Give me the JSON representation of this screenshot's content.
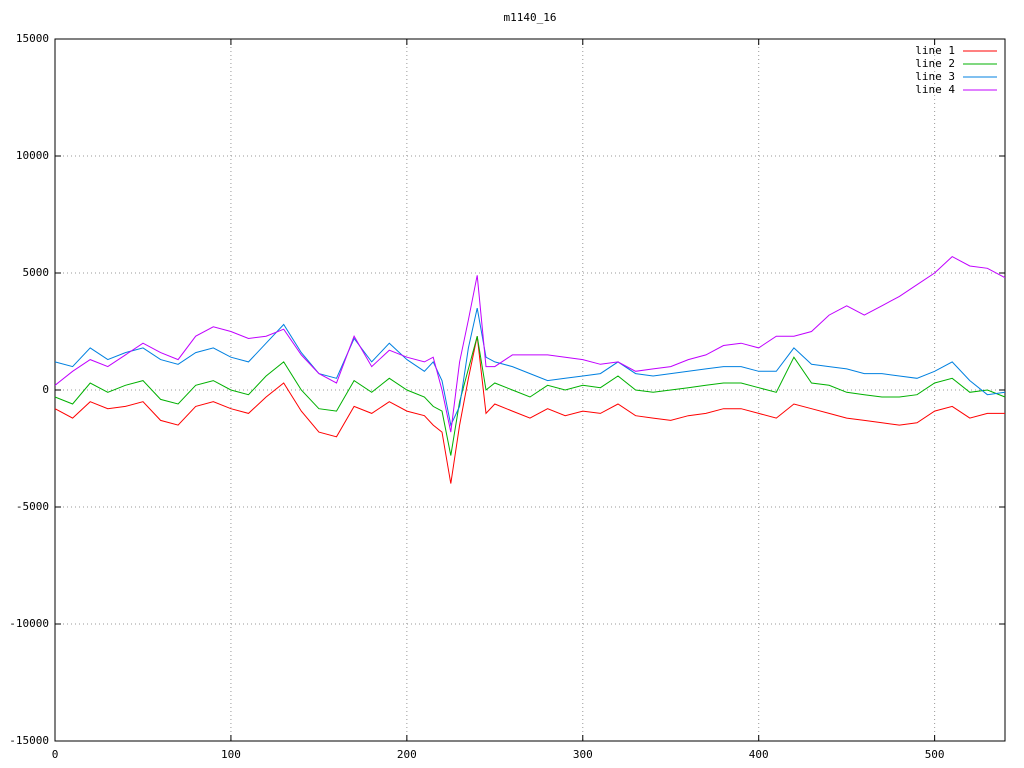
{
  "chart_data": {
    "type": "line",
    "title": "m1140_16",
    "x": [
      0,
      10,
      20,
      30,
      40,
      50,
      60,
      70,
      80,
      90,
      100,
      110,
      120,
      130,
      140,
      150,
      160,
      170,
      180,
      190,
      200,
      210,
      215,
      220,
      225,
      230,
      235,
      240,
      245,
      250,
      260,
      270,
      280,
      290,
      300,
      310,
      320,
      330,
      340,
      350,
      360,
      370,
      380,
      390,
      400,
      410,
      420,
      430,
      440,
      450,
      460,
      470,
      480,
      490,
      500,
      510,
      520,
      530,
      540
    ],
    "series": [
      {
        "name": "line 1",
        "color": "#ff0000",
        "values": [
          -800,
          -1200,
          -500,
          -800,
          -700,
          -500,
          -1300,
          -1500,
          -700,
          -500,
          -800,
          -1000,
          -300,
          300,
          -900,
          -1800,
          -2000,
          -700,
          -1000,
          -500,
          -900,
          -1100,
          -1500,
          -1800,
          -4000,
          -1500,
          500,
          2300,
          -1000,
          -600,
          -900,
          -1200,
          -800,
          -1100,
          -900,
          -1000,
          -600,
          -1100,
          -1200,
          -1300,
          -1100,
          -1000,
          -800,
          -800,
          -1000,
          -1200,
          -600,
          -800,
          -1000,
          -1200,
          -1300,
          -1400,
          -1500,
          -1400,
          -900,
          -700,
          -1200,
          -1000,
          -1000
        ]
      },
      {
        "name": "line 2",
        "color": "#00b000",
        "values": [
          -300,
          -600,
          300,
          -100,
          200,
          400,
          -400,
          -600,
          200,
          400,
          0,
          -200,
          600,
          1200,
          0,
          -800,
          -900,
          400,
          -100,
          500,
          0,
          -300,
          -700,
          -900,
          -2800,
          -500,
          900,
          2300,
          0,
          300,
          0,
          -300,
          200,
          0,
          200,
          100,
          600,
          0,
          -100,
          0,
          100,
          200,
          300,
          300,
          100,
          -100,
          1400,
          300,
          200,
          -100,
          -200,
          -300,
          -300,
          -200,
          300,
          500,
          -100,
          0,
          -300
        ]
      },
      {
        "name": "line 3",
        "color": "#0080e0",
        "values": [
          1200,
          1000,
          1800,
          1300,
          1600,
          1800,
          1300,
          1100,
          1600,
          1800,
          1400,
          1200,
          2000,
          2800,
          1600,
          700,
          500,
          2200,
          1200,
          2000,
          1300,
          800,
          1200,
          400,
          -1500,
          -700,
          1800,
          3500,
          1400,
          1200,
          1000,
          700,
          400,
          500,
          600,
          700,
          1200,
          700,
          600,
          700,
          800,
          900,
          1000,
          1000,
          800,
          800,
          1800,
          1100,
          1000,
          900,
          700,
          700,
          600,
          500,
          800,
          1200,
          400,
          -200,
          -100
        ]
      },
      {
        "name": "line 4",
        "color": "#c000ff",
        "values": [
          200,
          800,
          1300,
          1000,
          1500,
          2000,
          1600,
          1300,
          2300,
          2700,
          2500,
          2200,
          2300,
          2600,
          1500,
          700,
          300,
          2300,
          1000,
          1700,
          1400,
          1200,
          1400,
          0,
          -1800,
          1200,
          3000,
          4900,
          1000,
          1000,
          1500,
          1500,
          1500,
          1400,
          1300,
          1100,
          1200,
          800,
          900,
          1000,
          1300,
          1500,
          1900,
          2000,
          1800,
          2300,
          2300,
          2500,
          3200,
          3600,
          3200,
          3600,
          4000,
          4500,
          5000,
          5700,
          5300,
          5200,
          4800
        ]
      }
    ],
    "xlim": [
      0,
      540
    ],
    "xticks": [
      0,
      100,
      200,
      300,
      400,
      500
    ],
    "ylim": [
      -15000,
      15000
    ],
    "yticks": [
      -15000,
      -10000,
      -5000,
      0,
      5000,
      10000,
      15000
    ],
    "grid": true,
    "legend": "top-right"
  }
}
